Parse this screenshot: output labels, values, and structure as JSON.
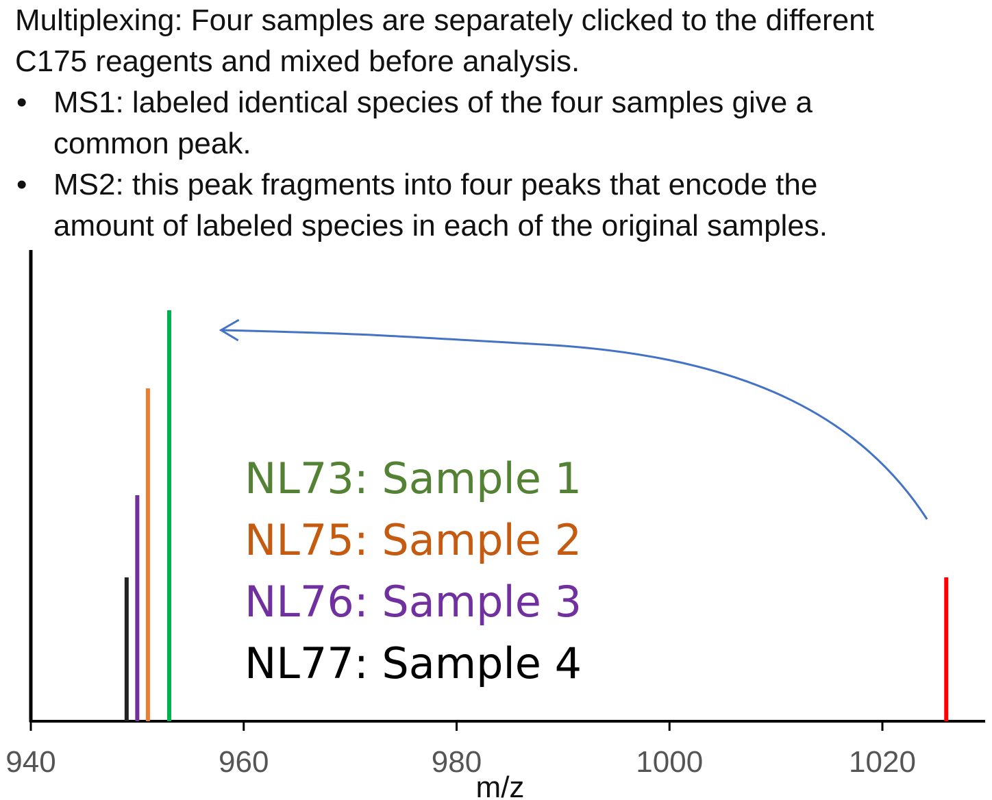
{
  "intro": {
    "line1": "Multiplexing: Four samples are separately clicked to the different",
    "line2": "C175 reagents and mixed before analysis."
  },
  "bullets": [
    {
      "mark": "•",
      "line1": "MS1: labeled identical species of the four samples give a",
      "line2": "common peak."
    },
    {
      "mark": "•",
      "line1": "MS2: this peak fragments into four peaks that encode the",
      "line2": "amount of labeled species in each of the original samples."
    }
  ],
  "chart_data": {
    "type": "bar",
    "xlabel": "m/z",
    "ylabel": "",
    "xlim": [
      940,
      1030
    ],
    "xticks": [
      940,
      960,
      980,
      1000,
      1020
    ],
    "ylim": [
      0,
      100
    ],
    "grid": false,
    "peaks": [
      {
        "x": 949,
        "y": 35,
        "color": "#222222"
      },
      {
        "x": 950,
        "y": 55,
        "color": "#7030A0"
      },
      {
        "x": 951,
        "y": 81,
        "color": "#ED7D31"
      },
      {
        "x": 953,
        "y": 100,
        "color": "#00B050"
      },
      {
        "x": 1026,
        "y": 35,
        "color": "#FF0000"
      }
    ],
    "arrow": {
      "color": "#4472C4",
      "from_x": 1024,
      "to_x": 958
    },
    "legend": [
      {
        "text": "NL73: Sample 1",
        "color": "#548235"
      },
      {
        "text": "NL75: Sample 2",
        "color": "#C55A11"
      },
      {
        "text": "NL76: Sample 3",
        "color": "#7030A0"
      },
      {
        "text": "NL77: Sample 4",
        "color": "#000000"
      }
    ]
  }
}
